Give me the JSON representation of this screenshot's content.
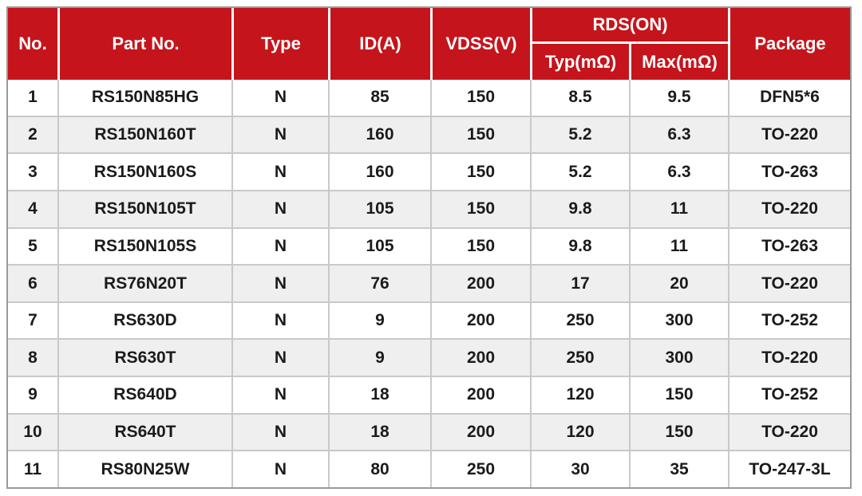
{
  "table": {
    "colors": {
      "accent": "#c5141b",
      "header_text": "#ffffff",
      "row_alt": "#efefef",
      "grid_line": "#c9c9c9",
      "outer_border": "#9a9a9a",
      "body_text": "#1b1b1b"
    },
    "columns": {
      "no": "No.",
      "part": "Part No.",
      "type": "Type",
      "id": "ID(A)",
      "vdss": "VDSS(V)",
      "rds_group": "RDS(ON)",
      "typ": "Typ(mΩ)",
      "max": "Max(mΩ)",
      "package": "Package"
    },
    "rows": [
      {
        "no": "1",
        "part": "RS150N85HG",
        "type": "N",
        "id": "85",
        "vdss": "150",
        "typ": "8.5",
        "max": "9.5",
        "package": "DFN5*6"
      },
      {
        "no": "2",
        "part": "RS150N160T",
        "type": "N",
        "id": "160",
        "vdss": "150",
        "typ": "5.2",
        "max": "6.3",
        "package": "TO-220"
      },
      {
        "no": "3",
        "part": "RS150N160S",
        "type": "N",
        "id": "160",
        "vdss": "150",
        "typ": "5.2",
        "max": "6.3",
        "package": "TO-263"
      },
      {
        "no": "4",
        "part": "RS150N105T",
        "type": "N",
        "id": "105",
        "vdss": "150",
        "typ": "9.8",
        "max": "11",
        "package": "TO-220"
      },
      {
        "no": "5",
        "part": "RS150N105S",
        "type": "N",
        "id": "105",
        "vdss": "150",
        "typ": "9.8",
        "max": "11",
        "package": "TO-263"
      },
      {
        "no": "6",
        "part": "RS76N20T",
        "type": "N",
        "id": "76",
        "vdss": "200",
        "typ": "17",
        "max": "20",
        "package": "TO-220"
      },
      {
        "no": "7",
        "part": "RS630D",
        "type": "N",
        "id": "9",
        "vdss": "200",
        "typ": "250",
        "max": "300",
        "package": "TO-252"
      },
      {
        "no": "8",
        "part": "RS630T",
        "type": "N",
        "id": "9",
        "vdss": "200",
        "typ": "250",
        "max": "300",
        "package": "TO-220"
      },
      {
        "no": "9",
        "part": "RS640D",
        "type": "N",
        "id": "18",
        "vdss": "200",
        "typ": "120",
        "max": "150",
        "package": "TO-252"
      },
      {
        "no": "10",
        "part": "RS640T",
        "type": "N",
        "id": "18",
        "vdss": "200",
        "typ": "120",
        "max": "150",
        "package": "TO-220"
      },
      {
        "no": "11",
        "part": "RS80N25W",
        "type": "N",
        "id": "80",
        "vdss": "250",
        "typ": "30",
        "max": "35",
        "package": "TO-247-3L"
      }
    ]
  }
}
